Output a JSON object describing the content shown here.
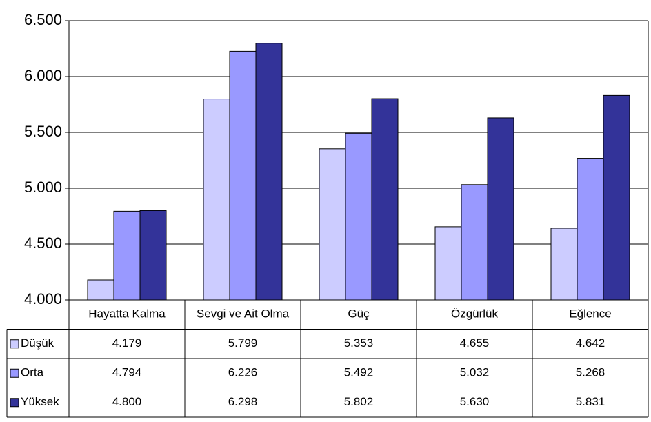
{
  "chart_data": {
    "type": "bar",
    "categories": [
      "Hayatta Kalma",
      "Sevgi ve Ait Olma",
      "Güç",
      "Özgürlük",
      "Eğlence"
    ],
    "series": [
      {
        "name": "Düşük",
        "color": "#ccccff",
        "values": [
          4.179,
          5.799,
          5.353,
          4.655,
          4.642
        ],
        "value_labels": [
          "4.179",
          "5.799",
          "5.353",
          "4.655",
          "4.642"
        ]
      },
      {
        "name": "Orta",
        "color": "#9999ff",
        "values": [
          4.794,
          6.226,
          5.492,
          5.032,
          5.268
        ],
        "value_labels": [
          "4.794",
          "6.226",
          "5.492",
          "5.032",
          "5.268"
        ]
      },
      {
        "name": "Yüksek",
        "color": "#333399",
        "values": [
          4.8,
          6.298,
          5.802,
          5.63,
          5.831
        ],
        "value_labels": [
          "4.800",
          "6.298",
          "5.802",
          "5.630",
          "5.831"
        ]
      }
    ],
    "ylim": [
      4,
      6.5
    ],
    "yticks": [
      {
        "value": 4,
        "label": "4.000"
      },
      {
        "value": 4.5,
        "label": "4.500"
      },
      {
        "value": 5,
        "label": "5.000"
      },
      {
        "value": 5.5,
        "label": "5.500"
      },
      {
        "value": 6,
        "label": "6.000"
      },
      {
        "value": 6.5,
        "label": "6.500"
      }
    ],
    "grid": true
  }
}
